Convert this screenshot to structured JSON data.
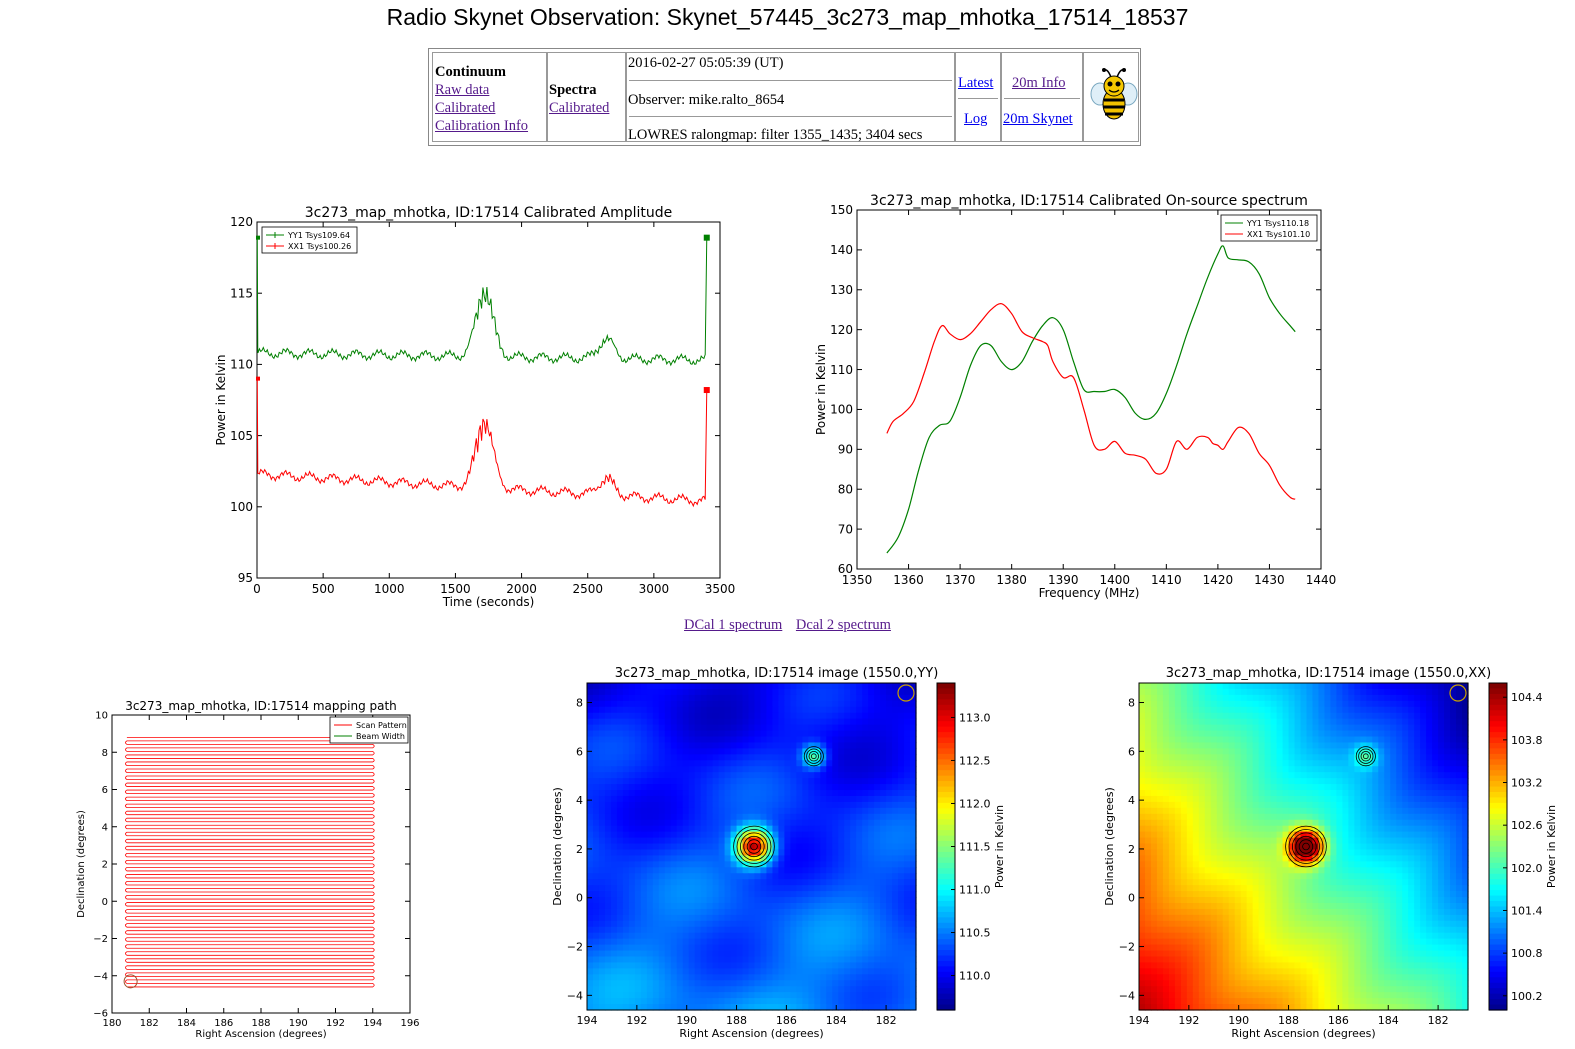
{
  "page_title": "Radio Skynet Observation: Skynet_57445_3c273_map_mhotka_17514_18537",
  "nav": {
    "continuum_heading": "Continuum",
    "continuum_links": [
      "Raw data",
      "Calibrated",
      "Calibration Info"
    ],
    "spectra_heading": "Spectra",
    "spectra_links": [
      "Calibrated"
    ],
    "timestamp": "2016-02-27 05:05:39 (UT)",
    "observer": "Observer: mike.ralto_8654",
    "config": "LOWRES ralongmap: filter 1355_1435; 3404 secs",
    "latest": "Latest",
    "log": "Log",
    "info_20m": "20m Info",
    "skynet_20m": "20m Skynet",
    "mascot_icon": "bee-icon"
  },
  "spectrum_links": [
    "DCal 1 spectrum",
    "Dcal 2 spectrum"
  ],
  "colors": {
    "green": "#008000",
    "red": "#ff0000",
    "link": "#551a8b",
    "link_blue": "#0000ee"
  },
  "chart_data": [
    {
      "id": "amplitude",
      "type": "line",
      "title": "3c273_map_mhotka, ID:17514 Calibrated Amplitude",
      "xlabel": "Time (seconds)",
      "ylabel": "Power in Kelvin",
      "xlim": [
        0,
        3500
      ],
      "ylim": [
        95,
        120
      ],
      "xticks": [
        0,
        500,
        1000,
        1500,
        2000,
        2500,
        3000,
        3500
      ],
      "yticks": [
        95,
        100,
        105,
        110,
        115,
        120
      ],
      "legend": "top-left",
      "grid": false,
      "series": [
        {
          "name": "YY1 Tsys109.64",
          "color": "#008000",
          "baseline_start": 110.8,
          "baseline_end": 110.3,
          "peaks": [
            [
              1720,
              4.3,
              90
            ],
            [
              2640,
              1.3,
              80
            ]
          ],
          "spike_start": 118.9,
          "spike_end": 118.9,
          "spike_end_x": 3400
        },
        {
          "name": "XX1 Tsys100.26",
          "color": "#ff0000",
          "baseline_start": 102.3,
          "baseline_end": 100.4,
          "peaks": [
            [
              1720,
              4.4,
              90
            ],
            [
              2640,
              1.1,
              80
            ]
          ],
          "spike_start": 109.0,
          "spike_end": 108.2,
          "spike_end_x": 3400
        }
      ]
    },
    {
      "id": "spectrum",
      "type": "line",
      "title": "3c273_map_mhotka, ID:17514 Calibrated On-source spectrum",
      "xlabel": "Frequency (MHz)",
      "ylabel": "Power in Kelvin",
      "xlim": [
        1350,
        1440
      ],
      "ylim": [
        60,
        150
      ],
      "xticks": [
        1350,
        1360,
        1370,
        1380,
        1390,
        1400,
        1410,
        1420,
        1430,
        1440
      ],
      "yticks": [
        60,
        70,
        80,
        90,
        100,
        110,
        120,
        130,
        140,
        150
      ],
      "legend": "top-right",
      "grid": false,
      "series": [
        {
          "name": "YY1 Tsys110.18",
          "color": "#008000",
          "points": [
            [
              1355.8,
              64
            ],
            [
              1358,
              68
            ],
            [
              1360,
              75
            ],
            [
              1362,
              85
            ],
            [
              1364,
              93
            ],
            [
              1366,
              96
            ],
            [
              1368,
              97
            ],
            [
              1370,
              103
            ],
            [
              1372,
              111
            ],
            [
              1374,
              116
            ],
            [
              1376,
              116
            ],
            [
              1378,
              112
            ],
            [
              1380,
              110
            ],
            [
              1382,
              112
            ],
            [
              1384,
              117
            ],
            [
              1386,
              121
            ],
            [
              1388,
              123
            ],
            [
              1390,
              120
            ],
            [
              1392,
              112
            ],
            [
              1394,
              105
            ],
            [
              1396,
              104.5
            ],
            [
              1398,
              104.5
            ],
            [
              1400,
              105
            ],
            [
              1402,
              103
            ],
            [
              1404,
              99
            ],
            [
              1406,
              97.5
            ],
            [
              1408,
              99
            ],
            [
              1410,
              104
            ],
            [
              1412,
              111
            ],
            [
              1414,
              119
            ],
            [
              1416,
              126
            ],
            [
              1418,
              133
            ],
            [
              1420,
              139
            ],
            [
              1421,
              141
            ],
            [
              1422,
              138
            ],
            [
              1424,
              137.5
            ],
            [
              1426,
              137
            ],
            [
              1428,
              134
            ],
            [
              1430,
              128
            ],
            [
              1432,
              124
            ],
            [
              1434,
              121
            ],
            [
              1435,
              119.5
            ]
          ]
        },
        {
          "name": "XX1 Tsys101.10",
          "color": "#ff0000",
          "points": [
            [
              1355.8,
              94
            ],
            [
              1357,
              97
            ],
            [
              1359,
              99
            ],
            [
              1361,
              102
            ],
            [
              1363,
              109
            ],
            [
              1365,
              117
            ],
            [
              1366.5,
              121
            ],
            [
              1368,
              119
            ],
            [
              1370,
              117.5
            ],
            [
              1372,
              119
            ],
            [
              1374,
              122
            ],
            [
              1376,
              125
            ],
            [
              1378,
              126.5
            ],
            [
              1380,
              124
            ],
            [
              1382,
              119.5
            ],
            [
              1384,
              118
            ],
            [
              1386,
              117
            ],
            [
              1387,
              116
            ],
            [
              1388,
              112
            ],
            [
              1390,
              108
            ],
            [
              1392,
              108
            ],
            [
              1394,
              100
            ],
            [
              1396,
              91
            ],
            [
              1398,
              90
            ],
            [
              1400,
              92
            ],
            [
              1402,
              89
            ],
            [
              1404,
              88.5
            ],
            [
              1406,
              87.5
            ],
            [
              1408,
              84
            ],
            [
              1410,
              85
            ],
            [
              1412,
              92
            ],
            [
              1414,
              90
            ],
            [
              1416,
              93
            ],
            [
              1418,
              93
            ],
            [
              1419,
              91.5
            ],
            [
              1420,
              91
            ],
            [
              1421,
              90
            ],
            [
              1422,
              92
            ],
            [
              1424,
              95.5
            ],
            [
              1426,
              94
            ],
            [
              1428,
              89
            ],
            [
              1430,
              86
            ],
            [
              1432,
              81
            ],
            [
              1434,
              78
            ],
            [
              1435,
              77.5
            ]
          ]
        }
      ]
    },
    {
      "id": "mapping_path",
      "type": "line",
      "title": "3c273_map_mhotka, ID:17514 mapping path",
      "xlabel": "Right Ascension (degrees)",
      "ylabel": "Declination (degrees)",
      "xlim": [
        180,
        196
      ],
      "ylim": [
        -6,
        10
      ],
      "xticks": [
        180,
        182,
        184,
        186,
        188,
        190,
        192,
        194,
        196
      ],
      "yticks": [
        -6,
        -4,
        -2,
        0,
        2,
        4,
        6,
        8,
        10
      ],
      "legend": "top-right",
      "series": [
        {
          "name": "Scan Pattern",
          "color": "#ff0000",
          "ra_range": [
            180.8,
            194.0
          ],
          "dec_range": [
            -4.6,
            8.8
          ],
          "rows": 72
        },
        {
          "name": "Beam Width",
          "color": "#008000"
        }
      ],
      "beam_circle": {
        "ra": 181.0,
        "dec": -4.3,
        "radius_deg": 0.35,
        "color": "#a0522d"
      }
    },
    {
      "id": "image_yy",
      "type": "heatmap",
      "title": "3c273_map_mhotka, ID:17514 image (1550.0,YY)",
      "xlabel": "Right Ascension (degrees)",
      "ylabel": "Declination (degrees)",
      "colorbar_label": "Power in Kelvin",
      "xlim": [
        194,
        180.8
      ],
      "ylim": [
        -4.6,
        8.8
      ],
      "xticks": [
        194,
        192,
        190,
        188,
        186,
        184,
        182
      ],
      "yticks": [
        -4,
        -2,
        0,
        2,
        4,
        6,
        8
      ],
      "clim": [
        109.6,
        113.4
      ],
      "cticks": [
        110.0,
        110.5,
        111.0,
        111.5,
        112.0,
        112.5,
        113.0
      ],
      "sources": [
        {
          "ra": 187.3,
          "dec": 2.1
        },
        {
          "ra": 184.9,
          "dec": 5.8
        }
      ]
    },
    {
      "id": "image_xx",
      "type": "heatmap",
      "title": "3c273_map_mhotka, ID:17514 image (1550.0,XX)",
      "xlabel": "Right Ascension (degrees)",
      "ylabel": "Declination (degrees)",
      "colorbar_label": "Power in Kelvin",
      "xlim": [
        194,
        180.8
      ],
      "ylim": [
        -4.6,
        8.8
      ],
      "xticks": [
        194,
        192,
        190,
        188,
        186,
        184,
        182
      ],
      "yticks": [
        -4,
        -2,
        0,
        2,
        4,
        6,
        8
      ],
      "clim": [
        100.0,
        104.6
      ],
      "cticks": [
        100.2,
        100.8,
        101.4,
        102.0,
        102.6,
        103.2,
        103.8,
        104.4
      ],
      "sources": [
        {
          "ra": 187.3,
          "dec": 2.1
        },
        {
          "ra": 184.9,
          "dec": 5.8
        }
      ]
    }
  ]
}
